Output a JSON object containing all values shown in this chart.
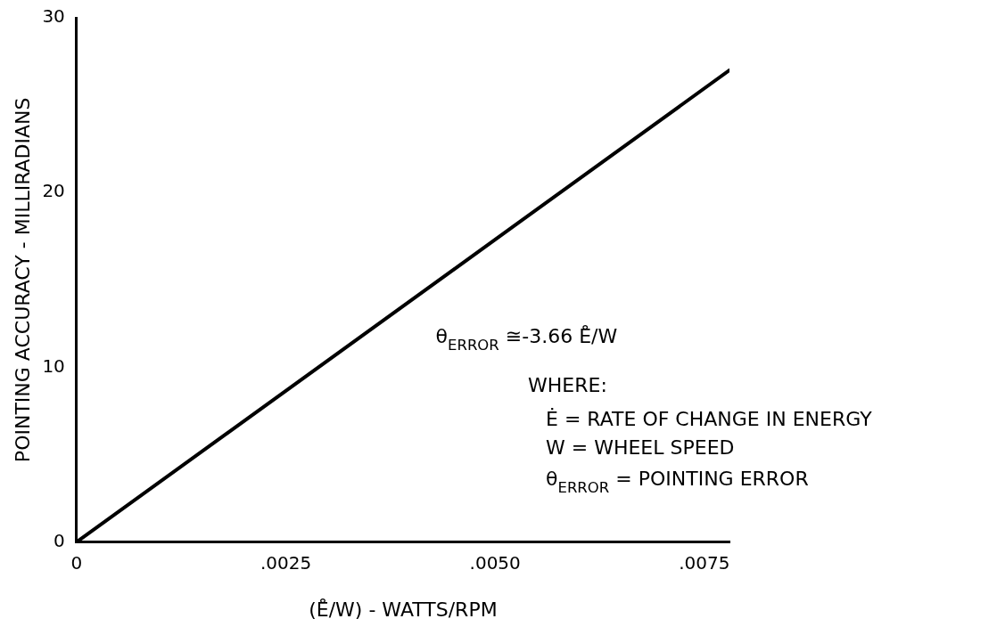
{
  "chart_data": {
    "type": "line",
    "xlabel": "(E̊/W) - WATTS/RPM",
    "ylabel": "POINTING ACCURACY - MILLIRADIANS",
    "x": [
      0,
      0.0078
    ],
    "series": [
      {
        "color": "#000000",
        "values": [
          0,
          27
        ]
      }
    ],
    "xlim": [
      0,
      0.0078
    ],
    "xticks": [
      0,
      {
        "value": 0.0025,
        "label": ".0025"
      },
      {
        "value": 0.005,
        "label": ".0050"
      },
      {
        "value": 0.0075,
        "label": ".0075"
      }
    ],
    "ylim": [
      0,
      30
    ],
    "yticks": [
      0,
      10,
      20,
      30
    ],
    "grid": false,
    "legend": false,
    "marker": "none",
    "line_style": "solid",
    "annotations": [
      "θ$_{ERROR}$ ≅-3.66 E̊/W",
      "WHERE:",
      "Ė = RATE OF CHANGE IN ENERGY",
      "W = WHEEL SPEED",
      "θ$_{ERROR}$ = POINTING ERROR"
    ]
  }
}
